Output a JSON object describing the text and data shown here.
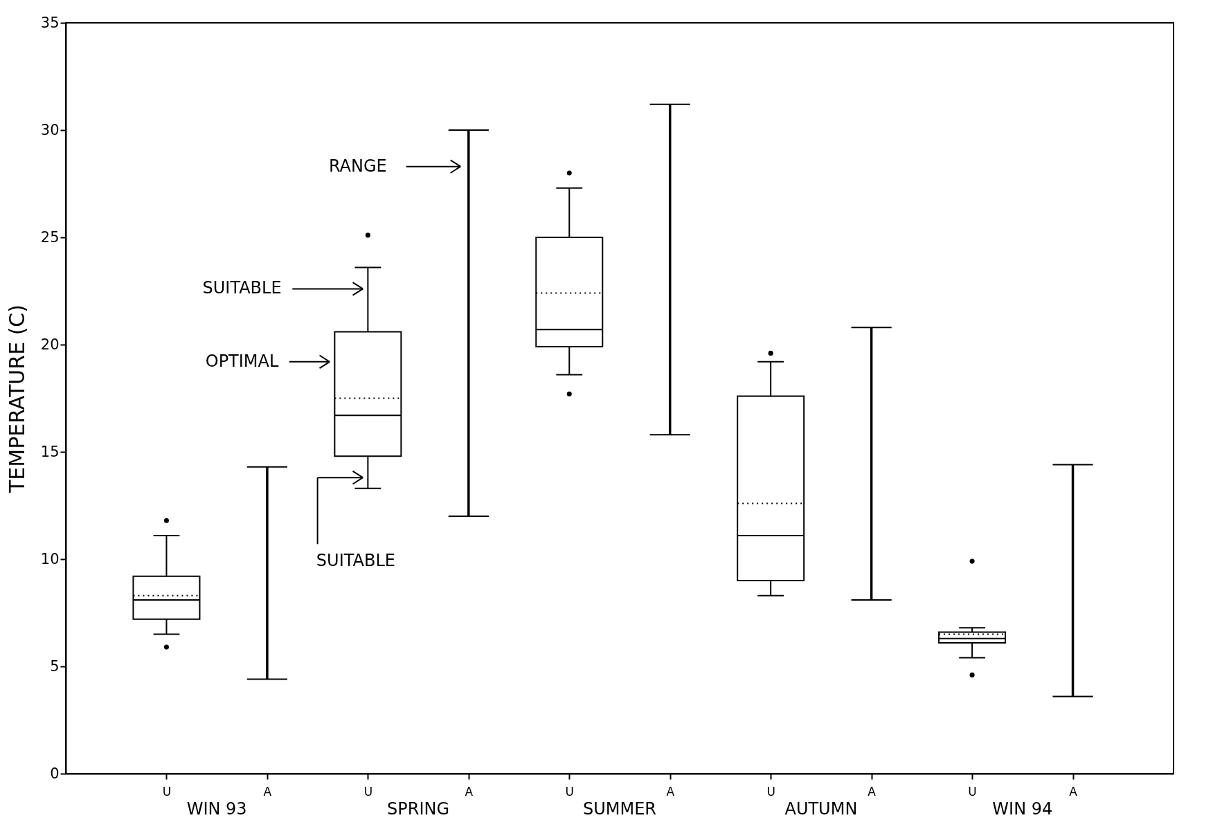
{
  "chart_data": {
    "type": "box",
    "ylabel": "TEMPERATURE (C)",
    "categories": [
      "U",
      "A",
      "U",
      "A",
      "U",
      "A",
      "U",
      "A",
      "U",
      "A"
    ],
    "series": [
      {
        "boxes": [
          {
            "low": 6.5,
            "q1": 7.2,
            "median": 8.1,
            "q3": 9.2,
            "high": 11.1,
            "mean": 8.3,
            "outliers": [
              11.8,
              5.9
            ]
          },
          null,
          {
            "low": 13.3,
            "q1": 14.8,
            "median": 16.7,
            "q3": 20.6,
            "high": 23.6,
            "mean": 17.5,
            "outliers": [
              25.1
            ]
          },
          null,
          {
            "low": 18.6,
            "q1": 19.9,
            "median": 20.7,
            "q3": 25.0,
            "high": 27.3,
            "mean": 22.4,
            "outliers": [
              28.0,
              17.7
            ]
          },
          null,
          {
            "low": 8.3,
            "q1": 9.0,
            "median": 11.1,
            "q3": 17.6,
            "high": 19.2,
            "mean": 12.6,
            "outliers": [
              19.6
            ]
          },
          null,
          {
            "low": 5.4,
            "q1": 6.1,
            "median": 6.3,
            "q3": 6.6,
            "high": 6.8,
            "mean": 6.5,
            "outliers": [
              9.9,
              4.6
            ]
          },
          null
        ]
      },
      {
        "type": "bar",
        "color": "#000000",
        "base": [
          null,
          4.4,
          null,
          12.0,
          null,
          15.8,
          null,
          8.1,
          null,
          3.6
        ],
        "values": [
          null,
          9.9,
          null,
          18.0,
          null,
          15.4,
          null,
          12.7,
          null,
          10.8
        ]
      }
    ],
    "ylim": [
      0,
      35
    ],
    "yticks": [
      0,
      5,
      10,
      15,
      20,
      25,
      30,
      35
    ],
    "annotations": [
      "WIN 93",
      "SPRING",
      "SUMMER",
      "AUTUMN",
      "WIN 94",
      "RANGE",
      "SUITABLE",
      "OPTIMAL",
      "SUITABLE"
    ]
  }
}
